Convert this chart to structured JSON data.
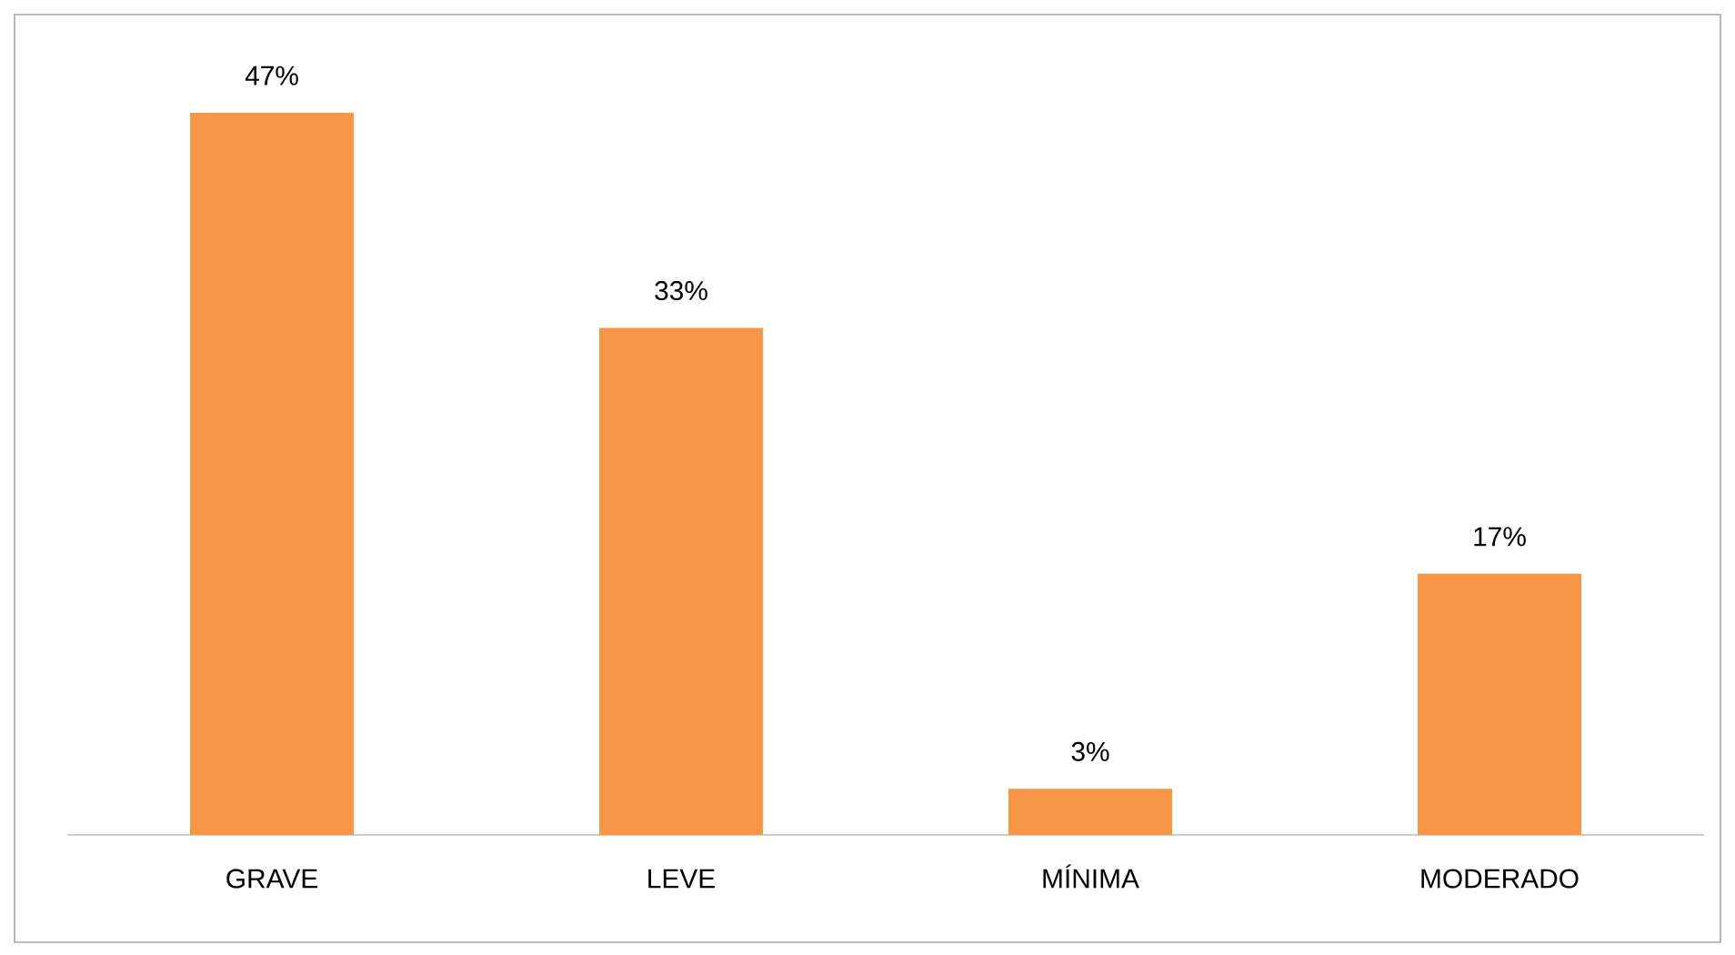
{
  "chart_data": {
    "type": "bar",
    "categories": [
      "GRAVE",
      "LEVE",
      "MÍNIMA",
      "MODERADO"
    ],
    "values": [
      47,
      33,
      3,
      17
    ],
    "value_labels": [
      "47%",
      "33%",
      "3%",
      "17%"
    ],
    "color": "#f79646"
  }
}
